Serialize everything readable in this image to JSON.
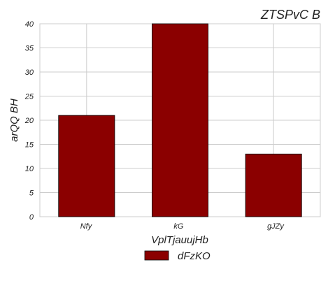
{
  "chart_data": {
    "type": "bar",
    "title": "ZTSPvC B",
    "xlabel": "VplTjauujHb",
    "ylabel": "arQQ BH",
    "categories": [
      "Nfy",
      "kG",
      "gJZy"
    ],
    "series": [
      {
        "name": "dFzKO",
        "values": [
          21,
          40,
          13
        ],
        "color": "#8b0000"
      }
    ],
    "ylim": [
      0,
      40
    ],
    "yticks": [
      0,
      5,
      10,
      15,
      20,
      25,
      30,
      35,
      40
    ],
    "grid": true,
    "legend_position": "bottom-center"
  }
}
